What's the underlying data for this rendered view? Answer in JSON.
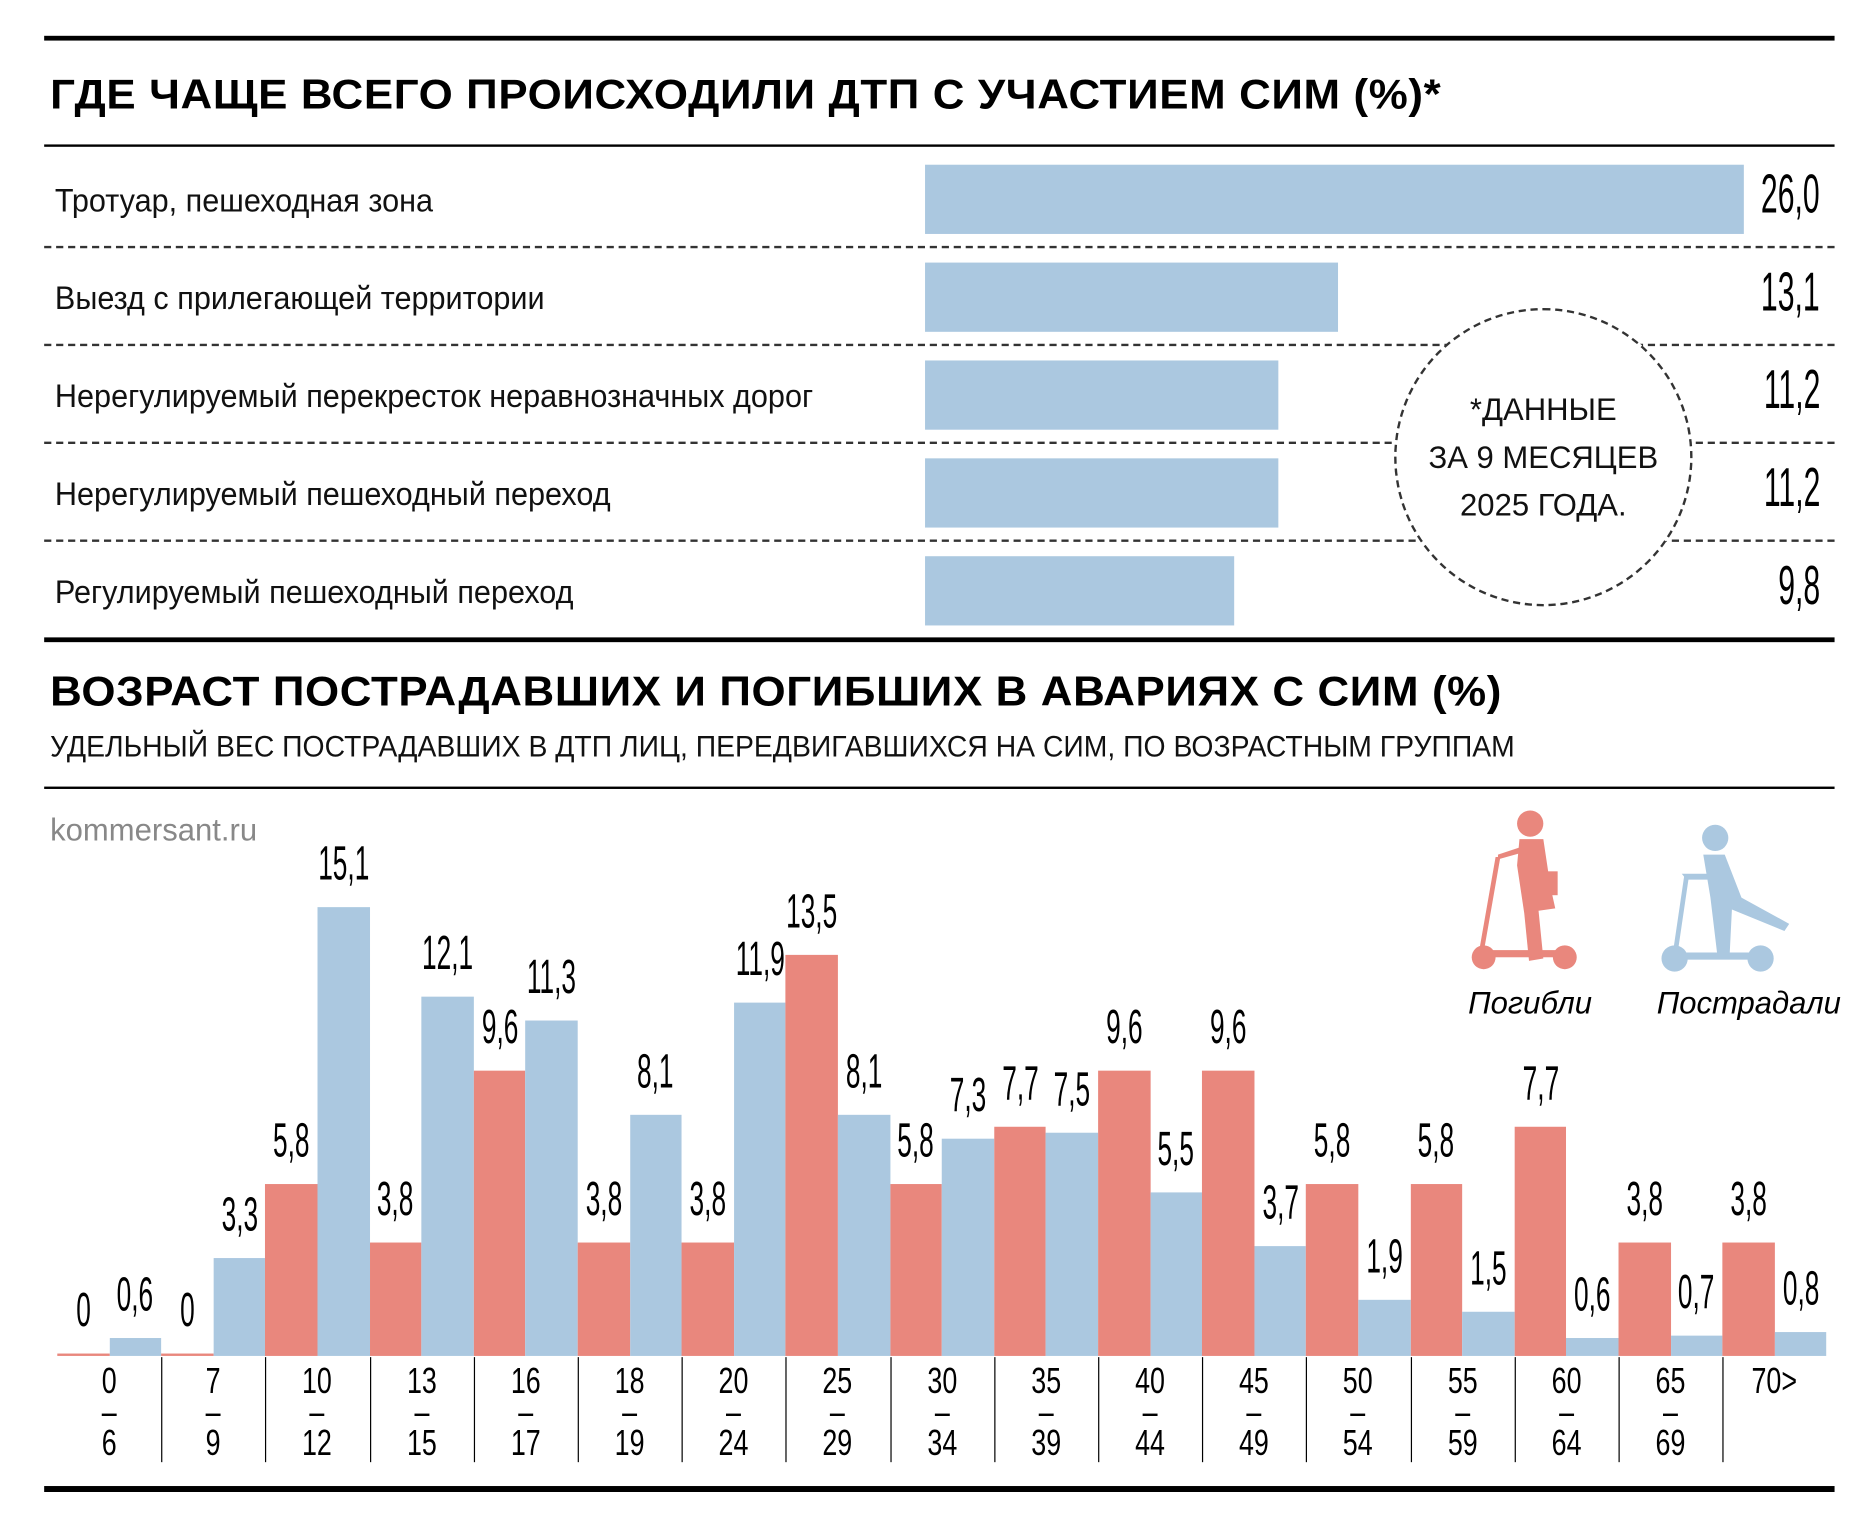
{
  "top": {
    "title": "ГДЕ ЧАЩЕ ВСЕГО ПРОИСХОДИЛИ ДТП С УЧАСТИЕМ СИМ (%)*",
    "rows": [
      {
        "label": "Тротуар, пешеходная зона",
        "value": 26.0,
        "text": "26,0"
      },
      {
        "label": "Выезд с прилегающей территории",
        "value": 13.1,
        "text": "13,1"
      },
      {
        "label": "Нерегулируемый перекресток неравнозначных дорог",
        "value": 11.2,
        "text": "11,2"
      },
      {
        "label": "Нерегулируемый пешеходный переход",
        "value": 11.2,
        "text": "11,2"
      },
      {
        "label": "Регулируемый пешеходный переход",
        "value": 9.8,
        "text": "9,8"
      }
    ],
    "note": [
      "*ДАННЫЕ",
      "ЗА 9 МЕСЯЦЕВ",
      "2025 ГОДА."
    ]
  },
  "bottom": {
    "title": "ВОЗРАСТ ПОСТРАДАВШИХ И ПОГИБШИХ В АВАРИЯХ С СИМ (%)",
    "subtitle": "УДЕЛЬНЫЙ ВЕС ПОСТРАДАВШИХ В ДТП ЛИЦ, ПЕРЕДВИГАВШИХСЯ НА СИМ, ПО ВОЗРАСТНЫМ ГРУППАМ",
    "source": "kommersant.ru"
  },
  "colors": {
    "dead": "#e9877d",
    "injured": "#abc8e0"
  },
  "chart_data": {
    "type": "bar",
    "title": "ВОЗРАСТ ПОСТРАДАВШИХ И ПОГИБШИХ В АВАРИЯХ С СИМ (%)",
    "categories": [
      [
        "0",
        "6"
      ],
      [
        "7",
        "9"
      ],
      [
        "10",
        "12"
      ],
      [
        "13",
        "15"
      ],
      [
        "16",
        "17"
      ],
      [
        "18",
        "19"
      ],
      [
        "20",
        "24"
      ],
      [
        "25",
        "29"
      ],
      [
        "30",
        "34"
      ],
      [
        "35",
        "39"
      ],
      [
        "40",
        "44"
      ],
      [
        "45",
        "49"
      ],
      [
        "50",
        "54"
      ],
      [
        "55",
        "59"
      ],
      [
        "60",
        "64"
      ],
      [
        "65",
        "69"
      ],
      [
        "70>",
        ""
      ]
    ],
    "series": [
      {
        "name": "Погибли",
        "values": [
          0,
          0,
          5.8,
          3.8,
          9.6,
          3.8,
          3.8,
          13.5,
          5.8,
          7.7,
          9.6,
          9.6,
          5.8,
          5.8,
          7.7,
          3.8,
          3.8
        ],
        "labels": [
          "0",
          "0",
          "5,8",
          "3,8",
          "9,6",
          "3,8",
          "3,8",
          "13,5",
          "5,8",
          "7,7",
          "9,6",
          "9,6",
          "5,8",
          "5,8",
          "7,7",
          "3,8",
          "3,8"
        ]
      },
      {
        "name": "Пострадали",
        "values": [
          0.6,
          3.3,
          15.1,
          12.1,
          11.3,
          8.1,
          11.9,
          8.1,
          7.3,
          7.5,
          5.5,
          3.7,
          1.9,
          1.5,
          0.6,
          0.7,
          0.8
        ],
        "labels": [
          "0,6",
          "3,3",
          "15,1",
          "12,1",
          "11,3",
          "8,1",
          "11,9",
          "8,1",
          "7,3",
          "7,5",
          "5,5",
          "3,7",
          "1,9",
          "1,5",
          "0,6",
          "0,7",
          "0,8"
        ]
      }
    ],
    "legend": "top-right"
  }
}
